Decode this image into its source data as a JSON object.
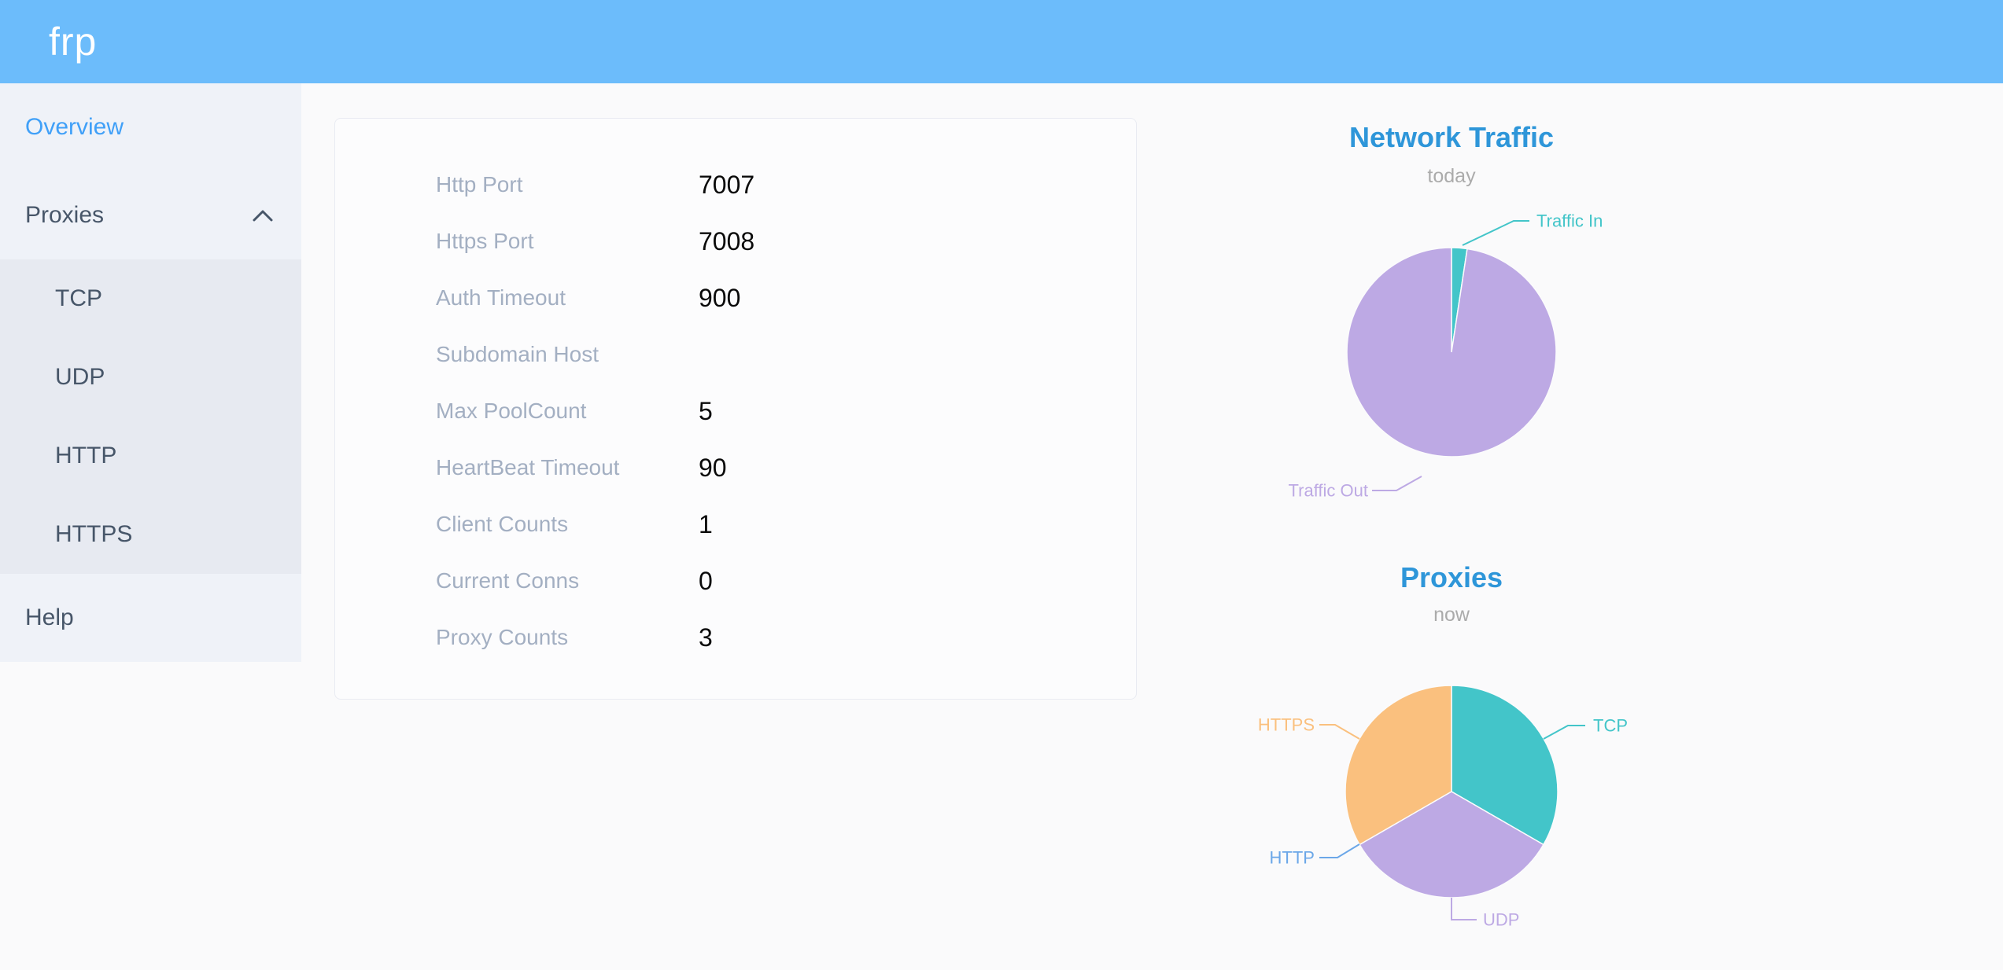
{
  "header": {
    "logo": "frp"
  },
  "sidebar": {
    "overview_label": "Overview",
    "proxies_label": "Proxies",
    "submenu": [
      "TCP",
      "UDP",
      "HTTP",
      "HTTPS"
    ],
    "help_label": "Help"
  },
  "server_info": {
    "rows": [
      {
        "label": "Http Port",
        "value": "7007"
      },
      {
        "label": "Https Port",
        "value": "7008"
      },
      {
        "label": "Auth Timeout",
        "value": "900"
      },
      {
        "label": "Subdomain Host",
        "value": ""
      },
      {
        "label": "Max PoolCount",
        "value": "5"
      },
      {
        "label": "HeartBeat Timeout",
        "value": "90"
      },
      {
        "label": "Client Counts",
        "value": "1"
      },
      {
        "label": "Current Conns",
        "value": "0"
      },
      {
        "label": "Proxy Counts",
        "value": "3"
      }
    ]
  },
  "chart_data": [
    {
      "type": "pie",
      "title": "Network Traffic",
      "subtitle": "today",
      "legend_position": "callout-labels",
      "slices": [
        {
          "label": "Traffic In",
          "percent": 2.4,
          "color": "#43C5C9"
        },
        {
          "label": "Traffic Out",
          "percent": 97.6,
          "color": "#BDA9E4"
        }
      ]
    },
    {
      "type": "pie",
      "title": "Proxies",
      "subtitle": "now",
      "legend_position": "callout-labels",
      "slices": [
        {
          "label": "TCP",
          "value": 1,
          "percent": 33.3,
          "color": "#43C5C9"
        },
        {
          "label": "UDP",
          "value": 1,
          "percent": 33.3,
          "color": "#BDA9E4"
        },
        {
          "label": "HTTP",
          "value": 0,
          "percent": 0,
          "color": "#6BA7E8"
        },
        {
          "label": "HTTPS",
          "value": 1,
          "percent": 33.3,
          "color": "#FAC07E"
        }
      ]
    }
  ],
  "colors": {
    "header_background": "#6CBCFB",
    "sidebar_background": "#EFF2F8",
    "submenu_background": "#E7EAF1",
    "active_menu_item": "#40A0F8",
    "chart_title": "#2E96D9",
    "teal": "#43C5C9",
    "purple": "#BDA9E4",
    "orange": "#FAC07E",
    "http_blue": "#6BA7E8"
  }
}
